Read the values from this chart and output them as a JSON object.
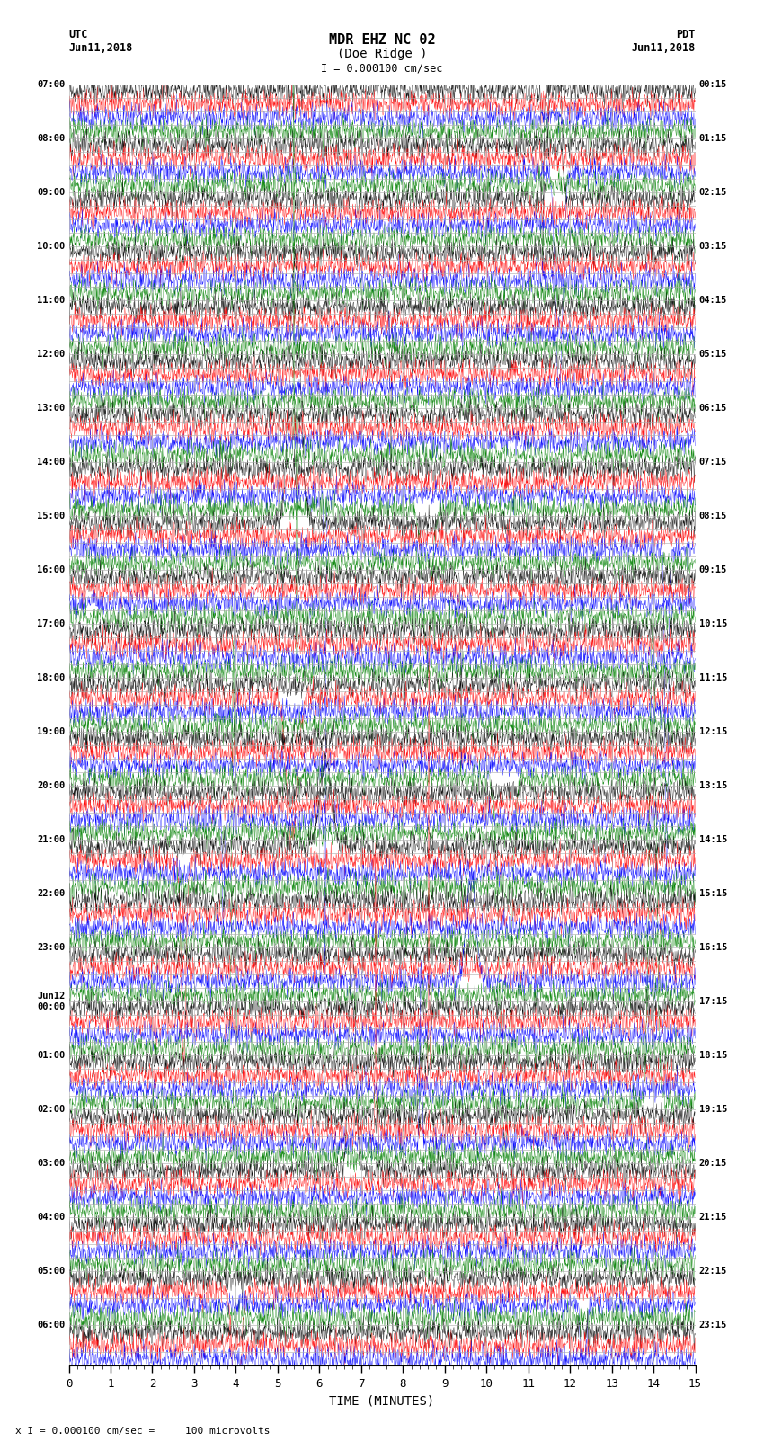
{
  "title_line1": "MDR EHZ NC 02",
  "title_line2": "(Doe Ridge )",
  "scale_label": "I = 0.000100 cm/sec",
  "footer_label": "x I = 0.000100 cm/sec =     100 microvolts",
  "xlabel": "TIME (MINUTES)",
  "xlim": [
    0,
    15
  ],
  "xticks": [
    0,
    1,
    2,
    3,
    4,
    5,
    6,
    7,
    8,
    9,
    10,
    11,
    12,
    13,
    14,
    15
  ],
  "left_times": [
    "07:00",
    "",
    "",
    "",
    "08:00",
    "",
    "",
    "",
    "09:00",
    "",
    "",
    "",
    "10:00",
    "",
    "",
    "",
    "11:00",
    "",
    "",
    "",
    "12:00",
    "",
    "",
    "",
    "13:00",
    "",
    "",
    "",
    "14:00",
    "",
    "",
    "",
    "15:00",
    "",
    "",
    "",
    "16:00",
    "",
    "",
    "",
    "17:00",
    "",
    "",
    "",
    "18:00",
    "",
    "",
    "",
    "19:00",
    "",
    "",
    "",
    "20:00",
    "",
    "",
    "",
    "21:00",
    "",
    "",
    "",
    "22:00",
    "",
    "",
    "",
    "23:00",
    "",
    "",
    "",
    "Jun12\n00:00",
    "",
    "",
    "",
    "01:00",
    "",
    "",
    "",
    "02:00",
    "",
    "",
    "",
    "03:00",
    "",
    "",
    "",
    "04:00",
    "",
    "",
    "",
    "05:00",
    "",
    "",
    "",
    "06:00",
    "",
    ""
  ],
  "right_times": [
    "00:15",
    "",
    "",
    "",
    "01:15",
    "",
    "",
    "",
    "02:15",
    "",
    "",
    "",
    "03:15",
    "",
    "",
    "",
    "04:15",
    "",
    "",
    "",
    "05:15",
    "",
    "",
    "",
    "06:15",
    "",
    "",
    "",
    "07:15",
    "",
    "",
    "",
    "08:15",
    "",
    "",
    "",
    "09:15",
    "",
    "",
    "",
    "10:15",
    "",
    "",
    "",
    "11:15",
    "",
    "",
    "",
    "12:15",
    "",
    "",
    "",
    "13:15",
    "",
    "",
    "",
    "14:15",
    "",
    "",
    "",
    "15:15",
    "",
    "",
    "",
    "16:15",
    "",
    "",
    "",
    "17:15",
    "",
    "",
    "",
    "18:15",
    "",
    "",
    "",
    "19:15",
    "",
    "",
    "",
    "20:15",
    "",
    "",
    "",
    "21:15",
    "",
    "",
    "",
    "22:15",
    "",
    "",
    "",
    "23:15",
    "",
    ""
  ],
  "num_rows": 95,
  "row_colors": [
    "black",
    "red",
    "blue",
    "green"
  ],
  "background_color": "white",
  "grid_color": "#aaaaaa",
  "fig_width": 8.5,
  "fig_height": 16.13,
  "noise_amp": 0.004,
  "spike_amp_min": 0.04,
  "spike_amp_max": 0.35,
  "n_samples": 1800
}
